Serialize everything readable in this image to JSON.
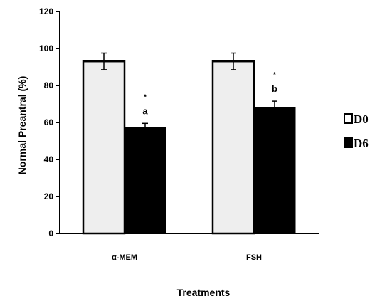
{
  "chart_data": {
    "type": "bar",
    "title": "",
    "xlabel": "Treatments",
    "ylabel": "Normal Preantral (%)",
    "ylim": [
      0,
      120
    ],
    "yticks": [
      0,
      20,
      40,
      60,
      80,
      100,
      120
    ],
    "categories": [
      "α-MEM",
      "FSH"
    ],
    "series": [
      {
        "name": "D0",
        "values": [
          93,
          93
        ],
        "errors": [
          4.5,
          4.5
        ],
        "color": "#eeeeee"
      },
      {
        "name": "D6",
        "values": [
          57.5,
          68
        ],
        "errors": [
          2,
          3.5
        ],
        "color": "#000000"
      }
    ],
    "annotations": [
      {
        "category": "α-MEM",
        "series": "D6",
        "marks": [
          "*",
          "a"
        ]
      },
      {
        "category": "FSH",
        "series": "D6",
        "marks": [
          "*",
          "b"
        ]
      }
    ],
    "legend_position": "right",
    "grid": false
  }
}
